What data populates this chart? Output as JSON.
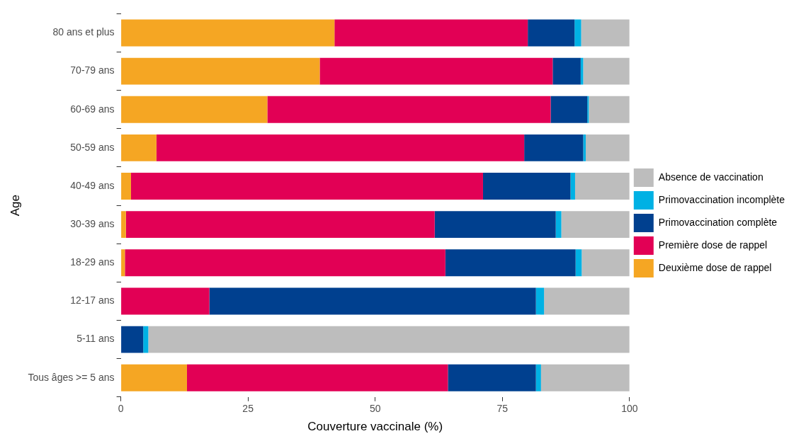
{
  "chart_data": {
    "type": "bar",
    "orientation": "horizontal",
    "stacked": true,
    "xlabel": "Couverture vaccinale (%)",
    "ylabel": "Age",
    "categories": [
      "80 ans et plus",
      "70-79 ans",
      "60-69 ans",
      "50-59 ans",
      "40-49 ans",
      "30-39 ans",
      "18-29 ans",
      "12-17 ans",
      "5-11 ans",
      "Tous âges >= 5 ans"
    ],
    "series": [
      {
        "name": "Deuxième dose de rappel",
        "color": "#f5a623",
        "values": [
          42.0,
          39.1,
          28.8,
          7.0,
          2.0,
          1.0,
          0.8,
          0,
          0,
          13.0
        ]
      },
      {
        "name": "Première dose de rappel",
        "color": "#e20055",
        "values": [
          38.0,
          45.8,
          55.7,
          72.3,
          69.2,
          60.7,
          63.0,
          17.4,
          0,
          51.3
        ]
      },
      {
        "name": "Primovaccination complète",
        "color": "#00408f",
        "values": [
          9.2,
          5.5,
          7.2,
          11.6,
          17.2,
          23.8,
          25.6,
          64.2,
          4.4,
          17.3
        ]
      },
      {
        "name": "Primovaccination incomplète",
        "color": "#00b1e4",
        "values": [
          1.3,
          0.5,
          0.3,
          0.5,
          0.9,
          1.1,
          1.2,
          1.6,
          1.0,
          1.0
        ]
      },
      {
        "name": "Absence de vaccination",
        "color": "#bdbdbd",
        "values": [
          9.5,
          9.1,
          8.0,
          8.6,
          10.7,
          13.4,
          9.4,
          16.8,
          94.6,
          17.4
        ]
      }
    ],
    "xlim": [
      0,
      100
    ],
    "xticks": [
      0,
      25,
      50,
      75,
      100
    ],
    "grid": false,
    "legend": "right"
  }
}
